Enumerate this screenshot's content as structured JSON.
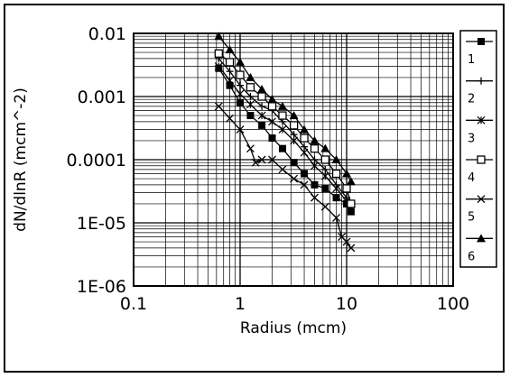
{
  "chart_data": {
    "type": "line",
    "title": "",
    "xlabel": "Radius (mcm)",
    "ylabel": "dN/dlnR (mcm^-2)",
    "x_scale": "log",
    "y_scale": "log",
    "xlim": [
      0.1,
      100
    ],
    "ylim": [
      1e-06,
      0.01
    ],
    "x_ticks": [
      0.1,
      1,
      10,
      100
    ],
    "x_tick_labels": [
      "0.1",
      "1",
      "10",
      "100"
    ],
    "y_ticks": [
      1e-06,
      1e-05,
      0.0001,
      0.001,
      0.01
    ],
    "y_tick_labels": [
      "1E-06",
      "1E-05",
      "0.0001",
      "0.001",
      "0.01"
    ],
    "grid": true,
    "legend_position": "right",
    "series": [
      {
        "name": "1",
        "marker": "filled-square",
        "x": [
          0.63,
          0.8,
          1.0,
          1.25,
          1.6,
          2.0,
          2.5,
          3.2,
          4.0,
          5.0,
          6.3,
          8.0,
          10.0,
          11.0
        ],
        "y": [
          0.0028,
          0.0015,
          0.0008,
          0.0005,
          0.00035,
          0.00022,
          0.00015,
          9e-05,
          6e-05,
          4e-05,
          3.5e-05,
          2.5e-05,
          2e-05,
          1.5e-05
        ]
      },
      {
        "name": "2",
        "marker": "plus",
        "x": [
          0.63,
          0.8,
          1.0,
          1.25,
          1.6,
          2.0,
          2.5,
          3.2,
          4.0,
          5.0,
          6.3,
          8.0,
          10.0,
          11.0
        ],
        "y": [
          0.004,
          0.0025,
          0.0015,
          0.001,
          0.0007,
          0.0006,
          0.0004,
          0.00025,
          0.00016,
          0.0001,
          7e-05,
          4e-05,
          2.5e-05,
          1.8e-05
        ]
      },
      {
        "name": "3",
        "marker": "asterisk",
        "x": [
          0.63,
          0.8,
          1.0,
          1.25,
          1.6,
          2.0,
          2.5,
          3.2,
          4.0,
          5.0,
          6.3,
          8.0,
          10.0,
          11.0
        ],
        "y": [
          0.003,
          0.0018,
          0.0011,
          0.00075,
          0.0005,
          0.0004,
          0.0003,
          0.0002,
          0.00013,
          8e-05,
          5.5e-05,
          3.5e-05,
          2.2e-05,
          2e-05
        ]
      },
      {
        "name": "4",
        "marker": "open-square",
        "x": [
          0.63,
          0.8,
          1.0,
          1.25,
          1.6,
          2.0,
          2.5,
          3.2,
          4.0,
          5.0,
          6.3,
          8.0,
          10.0,
          11.0
        ],
        "y": [
          0.0048,
          0.0035,
          0.0022,
          0.0014,
          0.001,
          0.0007,
          0.0005,
          0.00035,
          0.00022,
          0.00015,
          0.0001,
          6e-05,
          3.5e-05,
          2e-05
        ]
      },
      {
        "name": "5",
        "marker": "cross",
        "x": [
          0.63,
          0.8,
          1.0,
          1.25,
          1.4,
          1.6,
          2.0,
          2.5,
          3.2,
          4.0,
          5.0,
          6.3,
          8.0,
          9.0,
          10.0,
          11.0
        ],
        "y": [
          0.0007,
          0.00045,
          0.0003,
          0.00015,
          9e-05,
          0.0001,
          0.0001,
          7e-05,
          5e-05,
          4e-05,
          2.5e-05,
          1.8e-05,
          1.2e-05,
          6e-06,
          5e-06,
          4e-06
        ]
      },
      {
        "name": "6",
        "marker": "filled-triangle",
        "x": [
          0.63,
          0.8,
          1.0,
          1.25,
          1.6,
          2.0,
          2.5,
          3.2,
          4.0,
          5.0,
          6.3,
          8.0,
          10.0,
          11.0
        ],
        "y": [
          0.009,
          0.0055,
          0.0035,
          0.002,
          0.0013,
          0.0009,
          0.0007,
          0.0005,
          0.0003,
          0.0002,
          0.00015,
          0.0001,
          6e-05,
          4.5e-05
        ]
      }
    ]
  }
}
